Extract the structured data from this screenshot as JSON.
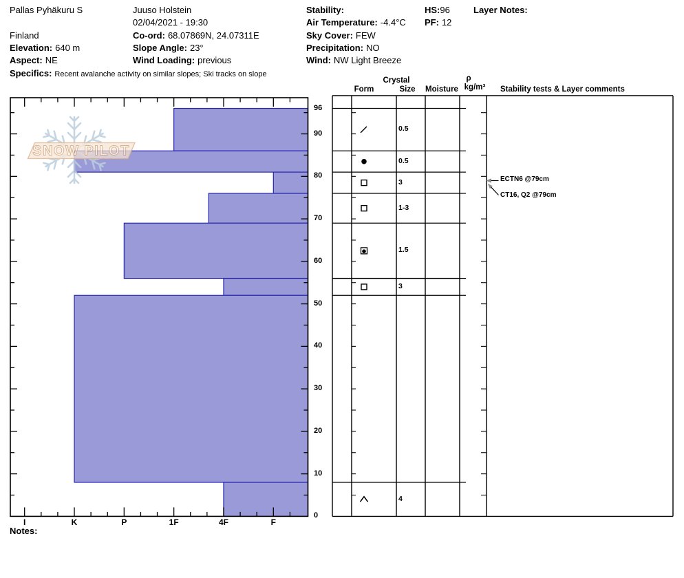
{
  "colors": {
    "bar_fill": "#9a9ad8",
    "bar_stroke": "#2626ad",
    "flake": "#bccfde",
    "banner_fill": "#f6e3d2",
    "banner_stroke": "#ddb48e",
    "banner_text_fill": "#fdf6ee",
    "banner_text_stroke": "#d2a47c",
    "arrow_head": "#8a8a8a"
  },
  "header": {
    "site_name": "Pallas Pyhäkuru S",
    "country": "Finland",
    "elevation_label": "Elevation:",
    "elevation_value": "640 m",
    "aspect_label": "Aspect:",
    "aspect_value": "NE",
    "observer_name": "Juuso Holstein",
    "datetime": "02/04/2021 - 19:30",
    "coord_label": "Co-ord:",
    "coord_value": "68.07869N, 24.07311E",
    "slope_angle_label": "Slope Angle:",
    "slope_angle_value": "23°",
    "wind_loading_label": "Wind Loading:",
    "wind_loading_value": "previous",
    "stability_label": "Stability:",
    "stability_value": "",
    "air_temp_label": "Air Temperature:",
    "air_temp_value": "-4.4°C",
    "sky_cover_label": "Sky Cover:",
    "sky_cover_value": "FEW",
    "precip_label": "Precipitation:",
    "precip_value": "NO",
    "wind_label": "Wind:",
    "wind_value": "NW Light Breeze",
    "hs_label": "HS:",
    "hs_value": "96",
    "pf_label": "PF:",
    "pf_value": "12",
    "layer_notes_label": "Layer Notes:",
    "specifics_label": "Specifics:",
    "specifics_value": "Recent avalanche activity on similar slopes; Ski tracks on slope"
  },
  "watermark": {
    "text": "SNOW PILOT"
  },
  "table_headers": {
    "crystal": "Crystal",
    "form": "Form",
    "size": "Size",
    "moisture": "Moisture",
    "rho": "ρ",
    "rho_units": "kg/m³",
    "comments": "Stability tests & Layer comments"
  },
  "stability_tests": [
    {
      "label": "ECTN6 @79cm",
      "depth_cm": 79
    },
    {
      "label": "CT16, Q2 @79cm",
      "depth_cm": 79
    }
  ],
  "notes_label": "Notes:",
  "chart_data": {
    "type": "bar",
    "orientation": "horizontal",
    "title": "Snow pit hardness profile",
    "x_axis_categories": [
      "I",
      "K",
      "P",
      "1F",
      "4F",
      "F"
    ],
    "y_axis_tick_labels": [
      96,
      90,
      80,
      70,
      60,
      50,
      40,
      30,
      20,
      10,
      0
    ],
    "y_axis_unit": "cm",
    "ylim": [
      0,
      96
    ],
    "grid": false,
    "layers": [
      {
        "top_cm": 96,
        "bottom_cm": 86,
        "hardness": "1F",
        "hardness_index": 3,
        "grain_form": "decomposing-fragments",
        "form_symbol": "slash",
        "grain_size_mm": "0.5"
      },
      {
        "top_cm": 86,
        "bottom_cm": 81,
        "hardness": "K",
        "hardness_index": 1,
        "grain_form": "rounded-grains",
        "form_symbol": "filled-circle",
        "grain_size_mm": "0.5"
      },
      {
        "top_cm": 81,
        "bottom_cm": 76,
        "hardness": "F",
        "hardness_index": 5,
        "grain_form": "faceted-crystals",
        "form_symbol": "open-square",
        "grain_size_mm": "3"
      },
      {
        "top_cm": 76,
        "bottom_cm": 69,
        "hardness": "4F-1F",
        "hardness_index": 3.7,
        "grain_form": "faceted-crystals",
        "form_symbol": "open-square",
        "grain_size_mm": "1-3"
      },
      {
        "top_cm": 69,
        "bottom_cm": 56,
        "hardness": "P",
        "hardness_index": 2,
        "grain_form": "rounding-faceted-crystals",
        "form_symbol": "square-dot",
        "grain_size_mm": "1.5"
      },
      {
        "top_cm": 56,
        "bottom_cm": 52,
        "hardness": "4F",
        "hardness_index": 4,
        "grain_form": "faceted-crystals",
        "form_symbol": "open-square",
        "grain_size_mm": "3"
      },
      {
        "top_cm": 52,
        "bottom_cm": 8,
        "hardness": "K",
        "hardness_index": 1,
        "grain_form": null,
        "form_symbol": null,
        "grain_size_mm": null
      },
      {
        "top_cm": 8,
        "bottom_cm": 0,
        "hardness": "4F",
        "hardness_index": 4,
        "grain_form": "depth-hoar",
        "form_symbol": "caret",
        "grain_size_mm": "4"
      }
    ]
  }
}
